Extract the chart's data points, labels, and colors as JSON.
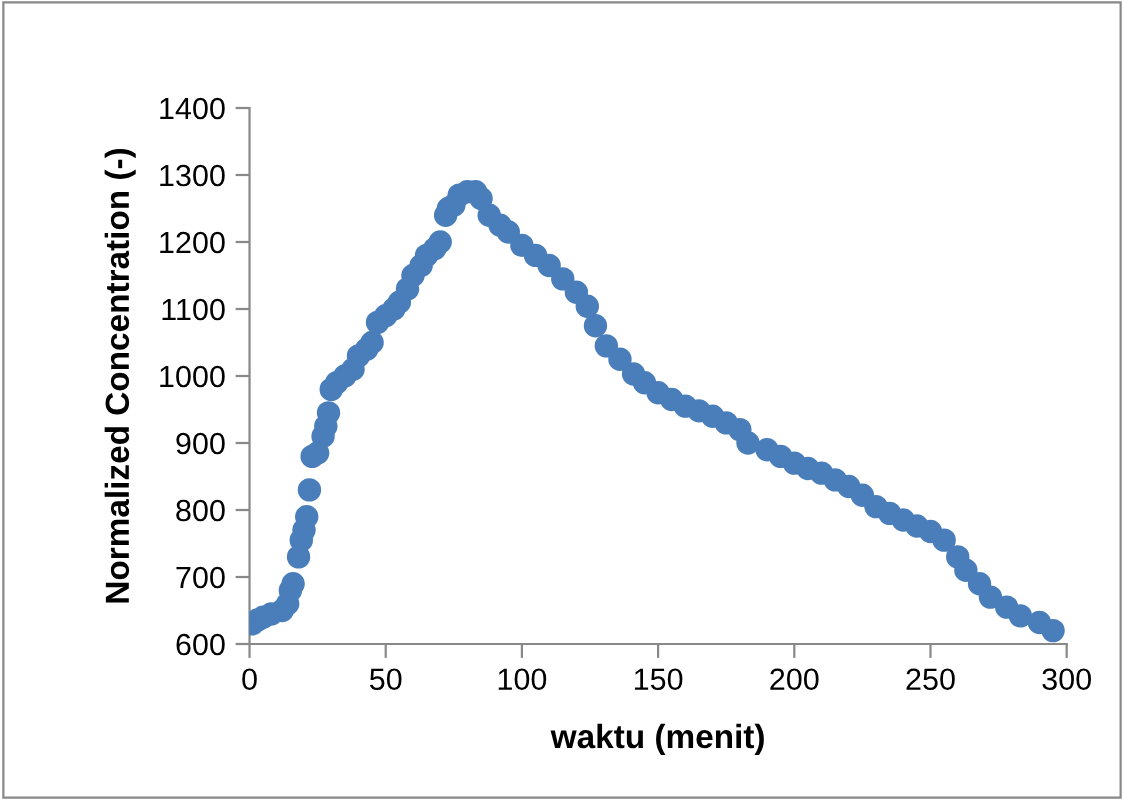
{
  "chart_data": {
    "type": "scatter",
    "xlabel": "waktu (menit)",
    "ylabel": "Normalized Concentration (-)",
    "xlim": [
      0,
      300
    ],
    "xticks": [
      0,
      50,
      100,
      150,
      200,
      250,
      300
    ],
    "ylim": [
      600,
      1400
    ],
    "yticks": [
      600,
      700,
      800,
      900,
      1000,
      1100,
      1200,
      1300,
      1400
    ],
    "grid": false,
    "legend": false,
    "marker": "circle",
    "x": [
      1,
      3,
      5,
      8,
      12,
      14,
      15,
      16,
      18,
      19,
      20,
      21,
      22,
      23,
      25,
      27,
      28,
      29,
      30,
      32,
      35,
      38,
      40,
      43,
      45,
      47,
      50,
      53,
      55,
      58,
      60,
      63,
      65,
      68,
      70,
      72,
      73,
      75,
      77,
      80,
      83,
      85,
      88,
      92,
      95,
      100,
      105,
      110,
      115,
      120,
      124,
      127,
      131,
      136,
      141,
      145,
      150,
      155,
      160,
      165,
      170,
      175,
      180,
      183,
      190,
      195,
      200,
      205,
      210,
      215,
      220,
      225,
      230,
      235,
      240,
      245,
      250,
      255,
      260,
      263,
      268,
      272,
      278,
      283,
      290,
      295
    ],
    "series": [
      {
        "color": "#4a7ebb",
        "values": [
          630,
          636,
          640,
          645,
          650,
          660,
          680,
          690,
          730,
          755,
          770,
          790,
          830,
          880,
          885,
          910,
          925,
          945,
          980,
          990,
          1000,
          1010,
          1030,
          1040,
          1050,
          1080,
          1090,
          1100,
          1110,
          1130,
          1150,
          1165,
          1180,
          1190,
          1200,
          1240,
          1250,
          1255,
          1270,
          1275,
          1275,
          1265,
          1240,
          1225,
          1215,
          1195,
          1180,
          1165,
          1145,
          1125,
          1104,
          1075,
          1045,
          1025,
          1003,
          990,
          975,
          965,
          955,
          948,
          940,
          930,
          920,
          900,
          890,
          880,
          870,
          862,
          855,
          845,
          835,
          822,
          805,
          795,
          785,
          776,
          768,
          755,
          730,
          710,
          690,
          670,
          655,
          642,
          632,
          620
        ]
      }
    ]
  }
}
